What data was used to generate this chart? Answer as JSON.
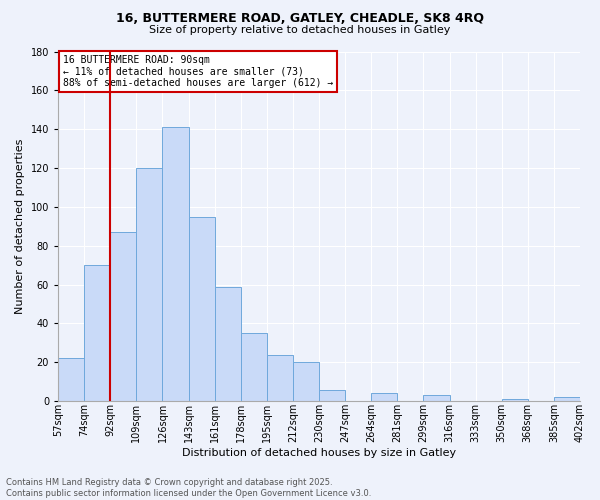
{
  "title_line1": "16, BUTTERMERE ROAD, GATLEY, CHEADLE, SK8 4RQ",
  "title_line2": "Size of property relative to detached houses in Gatley",
  "xlabel": "Distribution of detached houses by size in Gatley",
  "ylabel": "Number of detached properties",
  "bar_labels": [
    "57sqm",
    "74sqm",
    "92sqm",
    "109sqm",
    "126sqm",
    "143sqm",
    "161sqm",
    "178sqm",
    "195sqm",
    "212sqm",
    "230sqm",
    "247sqm",
    "264sqm",
    "281sqm",
    "299sqm",
    "316sqm",
    "333sqm",
    "350sqm",
    "368sqm",
    "385sqm",
    "402sqm"
  ],
  "bar_values": [
    22,
    70,
    87,
    120,
    141,
    95,
    59,
    35,
    24,
    20,
    6,
    0,
    4,
    0,
    3,
    0,
    0,
    1,
    0,
    2
  ],
  "bar_color": "#c9daf8",
  "bar_edge_color": "#6fa8dc",
  "vline_color": "#cc0000",
  "vline_x_bar_index": 2,
  "ylim": [
    0,
    180
  ],
  "yticks": [
    0,
    20,
    40,
    60,
    80,
    100,
    120,
    140,
    160,
    180
  ],
  "annotation_title": "16 BUTTERMERE ROAD: 90sqm",
  "annotation_line1": "← 11% of detached houses are smaller (73)",
  "annotation_line2": "88% of semi-detached houses are larger (612) →",
  "annotation_box_color": "#ffffff",
  "annotation_box_edge": "#cc0000",
  "footer_line1": "Contains HM Land Registry data © Crown copyright and database right 2025.",
  "footer_line2": "Contains public sector information licensed under the Open Government Licence v3.0.",
  "bg_color": "#eef2fb",
  "grid_color": "#ffffff",
  "title_fontsize": 9,
  "subtitle_fontsize": 8,
  "axis_label_fontsize": 8,
  "tick_fontsize": 7,
  "annotation_fontsize": 7,
  "footer_fontsize": 6
}
